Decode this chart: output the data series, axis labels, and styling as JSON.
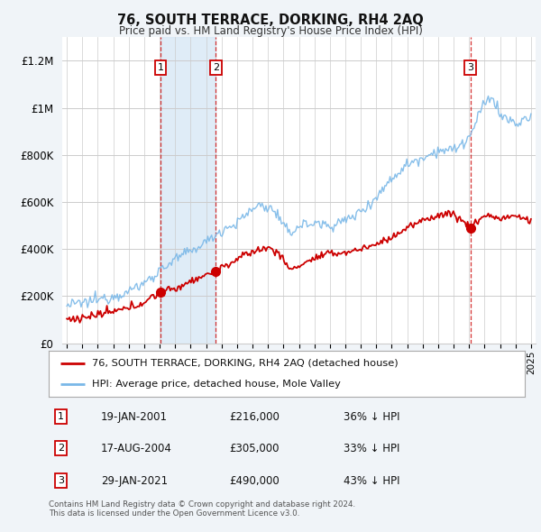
{
  "title": "76, SOUTH TERRACE, DORKING, RH4 2AQ",
  "subtitle": "Price paid vs. HM Land Registry's House Price Index (HPI)",
  "legend_line1": "76, SOUTH TERRACE, DORKING, RH4 2AQ (detached house)",
  "legend_line2": "HPI: Average price, detached house, Mole Valley",
  "footer1": "Contains HM Land Registry data © Crown copyright and database right 2024.",
  "footer2": "This data is licensed under the Open Government Licence v3.0.",
  "transactions": [
    {
      "num": 1,
      "date": "19-JAN-2001",
      "price": 216000,
      "pct": "36%",
      "dir": "↓",
      "x": 2001.05
    },
    {
      "num": 2,
      "date": "17-AUG-2004",
      "price": 305000,
      "pct": "33%",
      "dir": "↓",
      "x": 2004.63
    },
    {
      "num": 3,
      "date": "29-JAN-2021",
      "price": 490000,
      "pct": "43%",
      "dir": "↓",
      "x": 2021.08
    }
  ],
  "hpi_color": "#7ab8e8",
  "price_color": "#cc0000",
  "background_color": "#f0f4f8",
  "plot_bg_color": "#ffffff",
  "grid_color": "#cccccc",
  "shade_color": "#d8e8f5",
  "ylim": [
    0,
    1300000
  ],
  "xlim_start": 1994.7,
  "xlim_end": 2025.3,
  "yticks": [
    0,
    200000,
    400000,
    600000,
    800000,
    1000000,
    1200000
  ],
  "ytick_labels": [
    "£0",
    "£200K",
    "£400K",
    "£600K",
    "£800K",
    "£1M",
    "£1.2M"
  ]
}
